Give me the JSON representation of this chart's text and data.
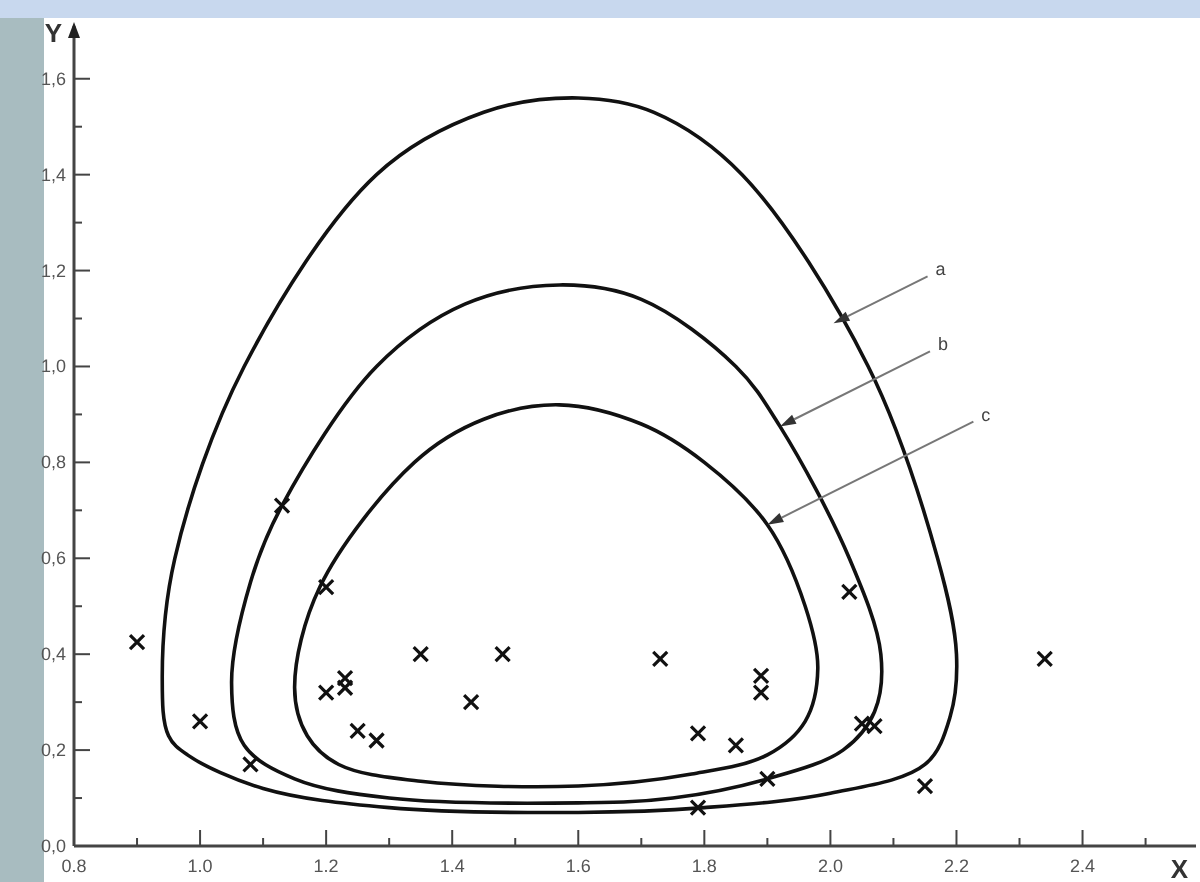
{
  "chart_data": {
    "type": "scatter",
    "xlabel": "X",
    "ylabel": "Y",
    "xlim": [
      0.8,
      2.58
    ],
    "ylim": [
      0,
      1.71
    ],
    "xticks": [
      {
        "value": 0.8,
        "label": "0.8"
      },
      {
        "value": 0.9,
        "label": null
      },
      {
        "value": 1.0,
        "label": "1.0"
      },
      {
        "value": 1.1,
        "label": null
      },
      {
        "value": 1.2,
        "label": "1.2"
      },
      {
        "value": 1.3,
        "label": null
      },
      {
        "value": 1.4,
        "label": "1.4"
      },
      {
        "value": 1.5,
        "label": null
      },
      {
        "value": 1.6,
        "label": "1.6"
      },
      {
        "value": 1.7,
        "label": null
      },
      {
        "value": 1.8,
        "label": "1.8"
      },
      {
        "value": 1.9,
        "label": null
      },
      {
        "value": 2.0,
        "label": "2.0"
      },
      {
        "value": 2.1,
        "label": null
      },
      {
        "value": 2.2,
        "label": "2.2"
      },
      {
        "value": 2.3,
        "label": null
      },
      {
        "value": 2.4,
        "label": "2.4"
      },
      {
        "value": 2.5,
        "label": null
      }
    ],
    "yticks": [
      {
        "value": 0,
        "label": "0,0"
      },
      {
        "value": 0.1,
        "label": null
      },
      {
        "value": 0.2,
        "label": "0,2"
      },
      {
        "value": 0.3,
        "label": null
      },
      {
        "value": 0.4,
        "label": "0,4"
      },
      {
        "value": 0.5,
        "label": null
      },
      {
        "value": 0.6,
        "label": "0,6"
      },
      {
        "value": 0.7,
        "label": null
      },
      {
        "value": 0.8,
        "label": "0,8"
      },
      {
        "value": 0.9,
        "label": null
      },
      {
        "value": 1.0,
        "label": "1,0"
      },
      {
        "value": 1.1,
        "label": null
      },
      {
        "value": 1.2,
        "label": "1,2"
      },
      {
        "value": 1.3,
        "label": null
      },
      {
        "value": 1.4,
        "label": "1,4"
      },
      {
        "value": 1.5,
        "label": null
      },
      {
        "value": 1.6,
        "label": "1,6"
      }
    ],
    "grid": false,
    "legend": false,
    "marker": "cross",
    "series": [
      {
        "color": "#111111",
        "x": [
          0.9,
          1.0,
          1.08,
          1.13,
          1.2,
          1.2,
          1.23,
          1.23,
          1.25,
          1.28,
          1.35,
          1.43,
          1.48,
          1.73,
          1.89,
          1.89,
          1.79,
          1.85,
          1.9,
          1.79,
          2.03,
          2.05,
          2.07,
          2.15,
          2.34
        ],
        "values": [
          0.425,
          0.26,
          0.17,
          0.71,
          0.54,
          0.32,
          0.35,
          0.33,
          0.24,
          0.22,
          0.4,
          0.3,
          0.4,
          0.39,
          0.355,
          0.32,
          0.235,
          0.21,
          0.14,
          0.08,
          0.53,
          0.255,
          0.25,
          0.125,
          0.39
        ]
      }
    ],
    "annotations": [
      "a",
      "b",
      "c"
    ]
  }
}
